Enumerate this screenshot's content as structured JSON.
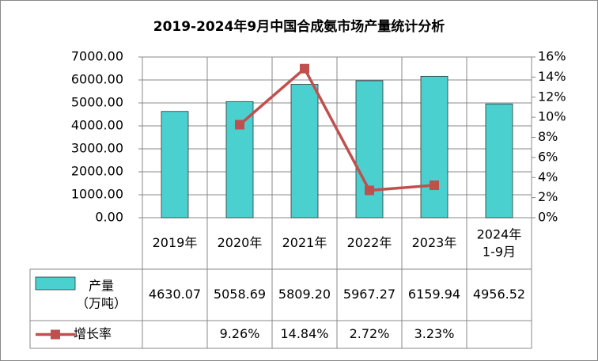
{
  "chart_data": {
    "type": "bar-line-table",
    "title": "2019-2024年9月中国合成氨市场产量统计分析",
    "categories": [
      "2019年",
      "2020年",
      "2021年",
      "2022年",
      "2023年",
      "2024年\n1-9月"
    ],
    "series": [
      {
        "name": "产量\n（万吨）",
        "type": "bar",
        "color": "#4bd0d0",
        "values": [
          4630.07,
          5058.69,
          5809.2,
          5967.27,
          6159.94,
          4956.52
        ],
        "value_labels": [
          "4630.07",
          "5058.69",
          "5809.20",
          "5967.27",
          "6159.94",
          "4956.52"
        ]
      },
      {
        "name": "增长率",
        "type": "line",
        "axis": "y2",
        "color": "#c0504d",
        "values": [
          null,
          9.26,
          14.84,
          2.72,
          3.23,
          null
        ],
        "value_labels": [
          null,
          "9.26%",
          "14.84%",
          "2.72%",
          "3.23%",
          null
        ]
      }
    ],
    "ylim": [
      0,
      7000
    ],
    "yticks": [
      {
        "value": 0,
        "label": "0.00"
      },
      {
        "value": 1000,
        "label": "1000.00"
      },
      {
        "value": 2000,
        "label": "2000.00"
      },
      {
        "value": 3000,
        "label": "3000.00"
      },
      {
        "value": 4000,
        "label": "4000.00"
      },
      {
        "value": 5000,
        "label": "5000.00"
      },
      {
        "value": 6000,
        "label": "6000.00"
      },
      {
        "value": 7000,
        "label": "7000.00"
      }
    ],
    "y2lim": [
      0,
      16
    ],
    "y2ticks": [
      {
        "value": 0,
        "label": "0%"
      },
      {
        "value": 2,
        "label": "2%"
      },
      {
        "value": 4,
        "label": "4%"
      },
      {
        "value": 6,
        "label": "6%"
      },
      {
        "value": 8,
        "label": "8%"
      },
      {
        "value": 10,
        "label": "10%"
      },
      {
        "value": 12,
        "label": "12%"
      },
      {
        "value": 14,
        "label": "14%"
      },
      {
        "value": 16,
        "label": "16%"
      }
    ],
    "grid": true
  }
}
